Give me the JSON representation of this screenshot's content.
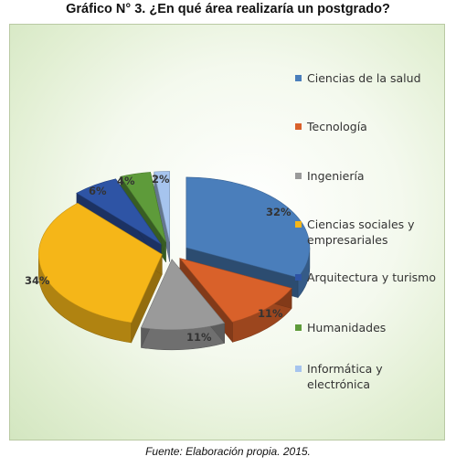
{
  "title": "Gráfico N° 3. ¿En qué área realizaría un postgrado?",
  "source": "Fuente: Elaboración propia. 2015.",
  "chart_data": {
    "type": "pie",
    "variant": "3d-exploded",
    "legend_position": "right",
    "slices": [
      {
        "label": "Ciencias de la salud",
        "value": 32,
        "value_label": "32%",
        "color": "#4a7ebb"
      },
      {
        "label": "Tecnología",
        "value": 11,
        "value_label": "11%",
        "color": "#d9612a"
      },
      {
        "label": "Ingeniería",
        "value": 11,
        "value_label": "11%",
        "color": "#9a9a9a"
      },
      {
        "label": "Ciencias sociales y empresariales",
        "value": 34,
        "value_label": "34%",
        "color": "#f5b618"
      },
      {
        "label": "Arquitectura y turismo",
        "value": 6,
        "value_label": "6%",
        "color": "#2e54a5"
      },
      {
        "label": "Humanidades",
        "value": 4,
        "value_label": "4%",
        "color": "#5e9b3a"
      },
      {
        "label": "Informática y electrónica",
        "value": 2,
        "value_label": "2%",
        "color": "#a6c4ee"
      }
    ]
  }
}
